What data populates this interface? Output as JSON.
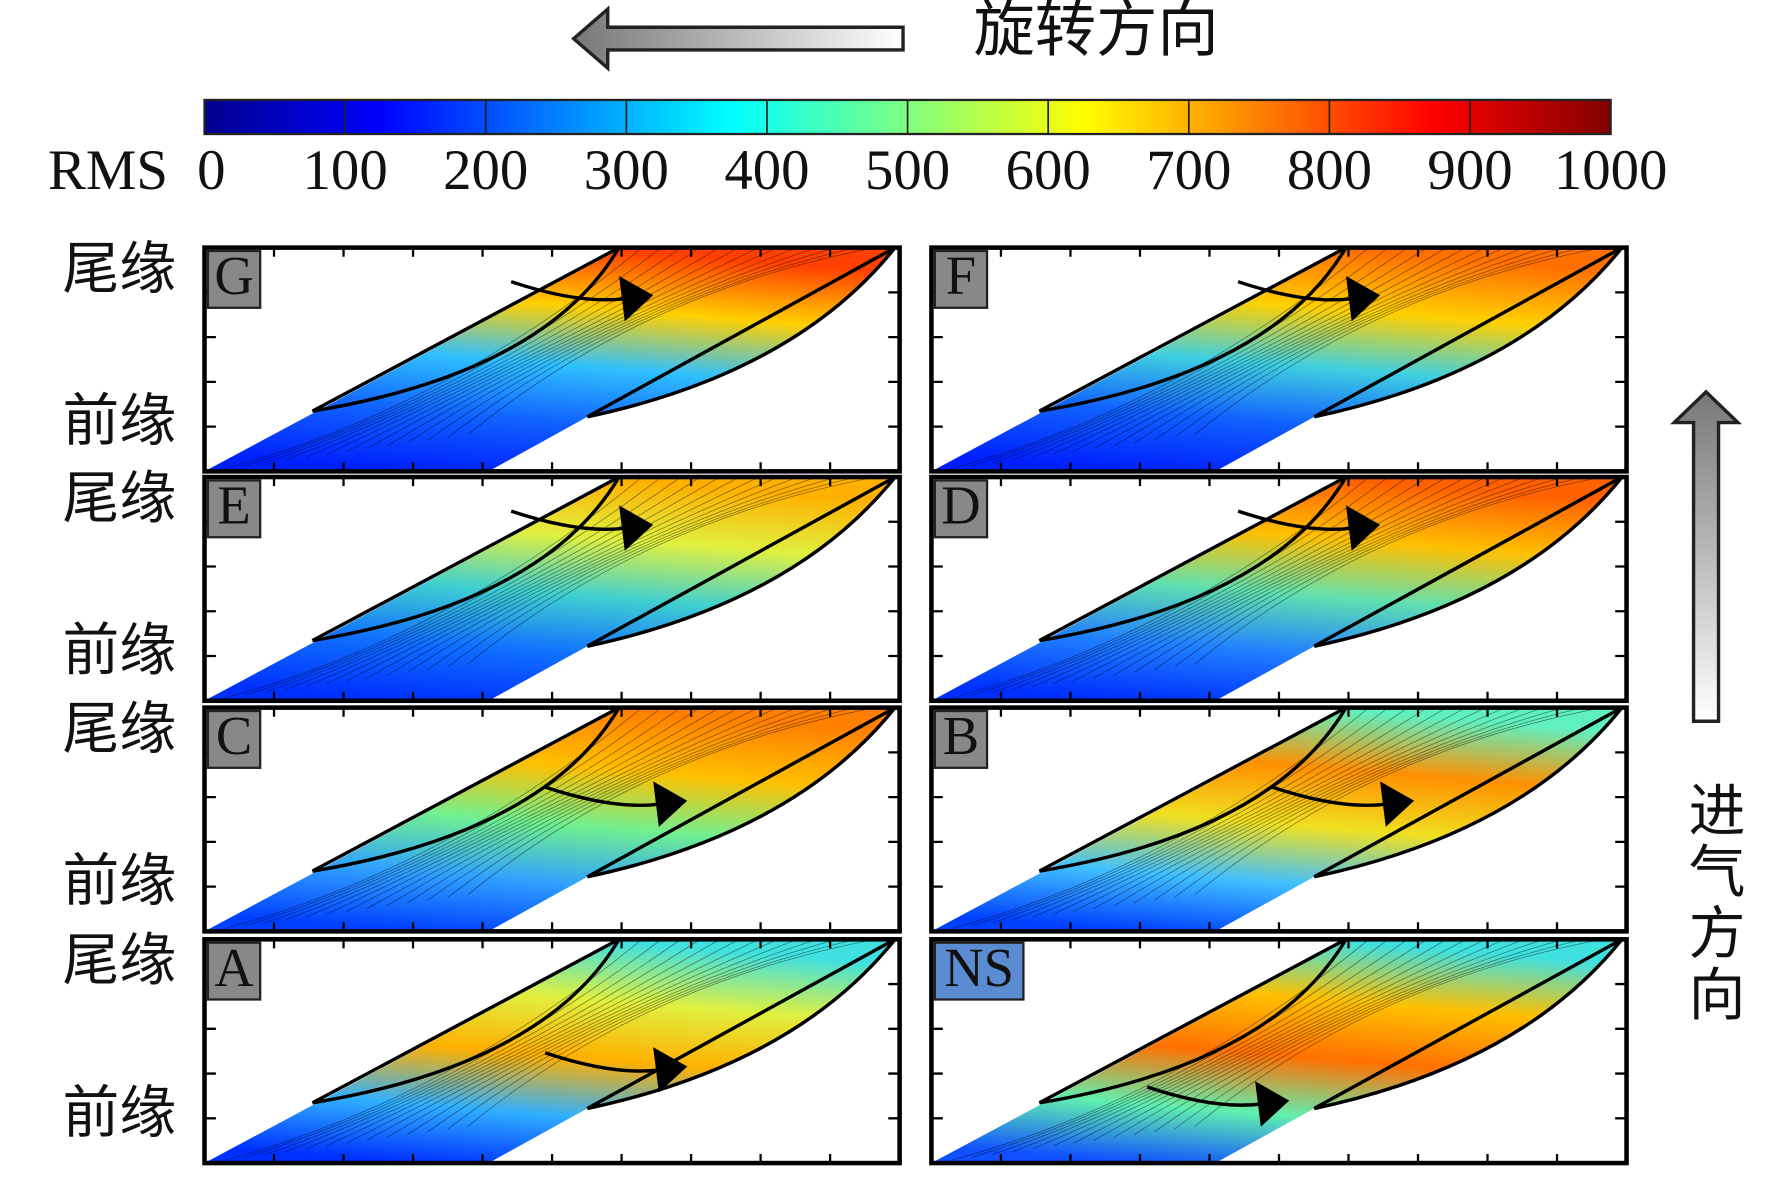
{
  "chart_data": {
    "type": "contour",
    "title": "旋转方向",
    "side_label": "进气方向",
    "y_labels": [
      "尾缘",
      "前缘"
    ],
    "colorbar": {
      "label": "RMS",
      "lim": [
        0,
        1000
      ],
      "ticks": [
        0,
        100,
        200,
        300,
        400,
        500,
        600,
        700,
        800,
        900,
        1000
      ],
      "colors": [
        "#00008f",
        "#0000ff",
        "#0080ff",
        "#00ffff",
        "#80ff80",
        "#ffff00",
        "#ff8000",
        "#ff0000",
        "#800000"
      ]
    },
    "panels": [
      "G",
      "F",
      "E",
      "D",
      "C",
      "B",
      "A",
      "NS"
    ]
  }
}
